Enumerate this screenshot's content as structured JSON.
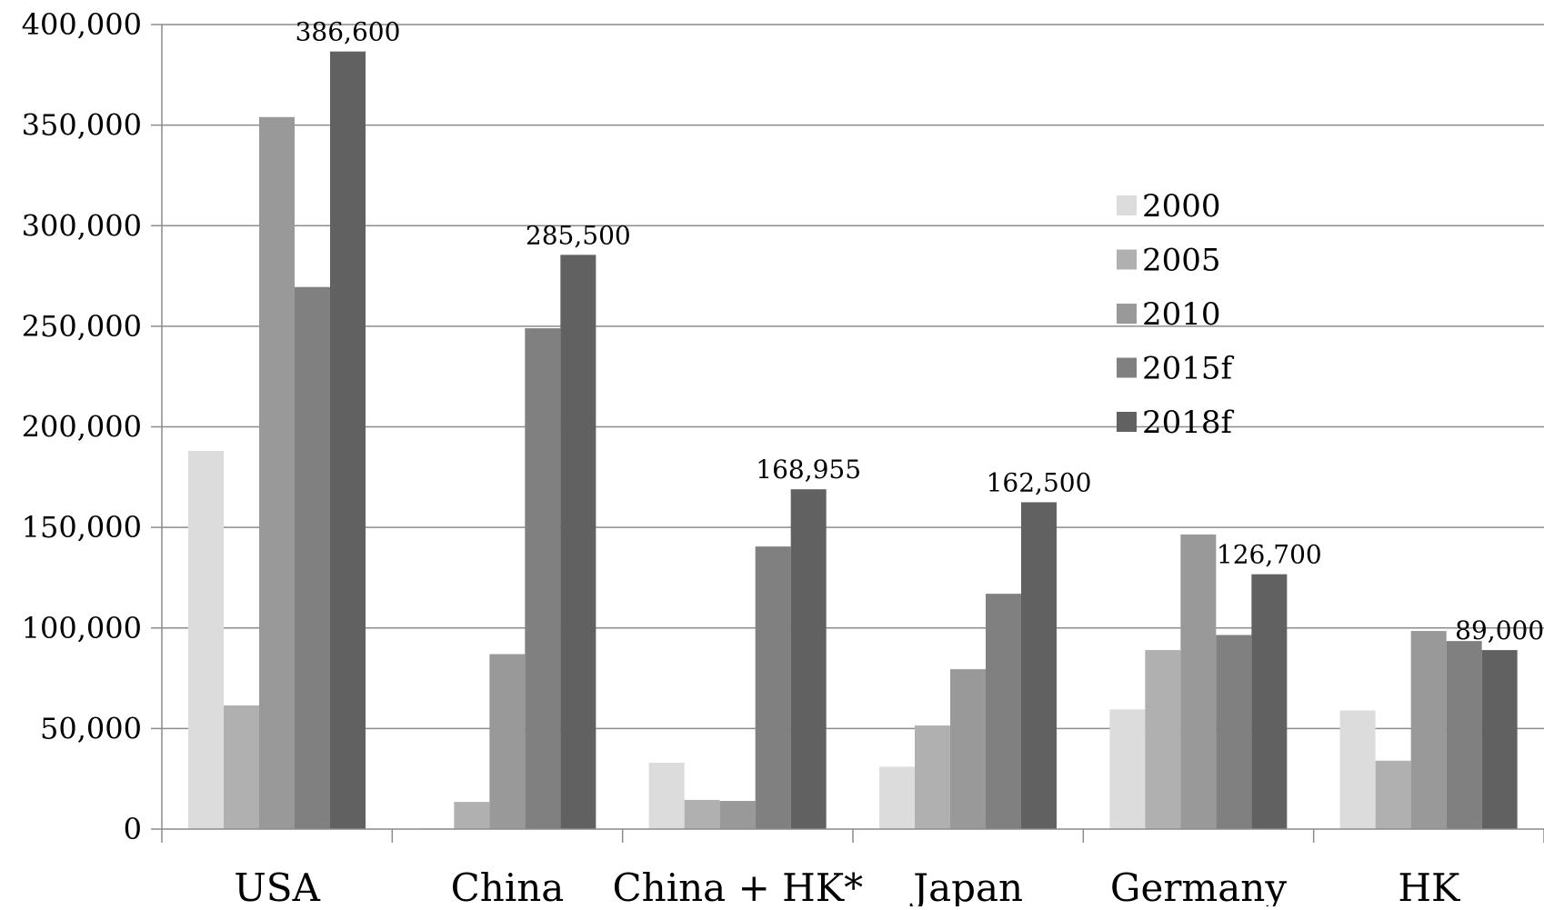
{
  "chart_data": {
    "type": "bar",
    "categories": [
      "USA",
      "China",
      "China + HK*",
      "Japan",
      "Germany",
      "HK"
    ],
    "series": [
      {
        "name": "2000",
        "color": "#dcdcdc",
        "values": [
          188000,
          500,
          33000,
          31000,
          59500,
          59000
        ]
      },
      {
        "name": "2005",
        "color": "#b0b0b0",
        "values": [
          61500,
          13500,
          14500,
          51500,
          89000,
          34000
        ]
      },
      {
        "name": "2010",
        "color": "#999999",
        "values": [
          354000,
          87000,
          14000,
          79500,
          146500,
          98500
        ]
      },
      {
        "name": "2015f",
        "color": "#808080",
        "values": [
          269500,
          249000,
          140500,
          117000,
          96500,
          93500
        ]
      },
      {
        "name": "2018f",
        "color": "#616161",
        "values": [
          386600,
          285500,
          168955,
          162500,
          126700,
          89000
        ]
      }
    ],
    "data_labels": [
      "386,600",
      "285,500",
      "168,955",
      "162,500",
      "126,700",
      "89,000"
    ],
    "y_ticks": [
      "0",
      "50,000",
      "100,000",
      "150,000",
      "200,000",
      "250,000",
      "300,000",
      "350,000",
      "400,000"
    ],
    "ylim": [
      0,
      400000
    ],
    "y_tick_step": 50000,
    "grid": true,
    "legend_position": "right-middle",
    "title": "",
    "xlabel": "",
    "ylabel": ""
  }
}
